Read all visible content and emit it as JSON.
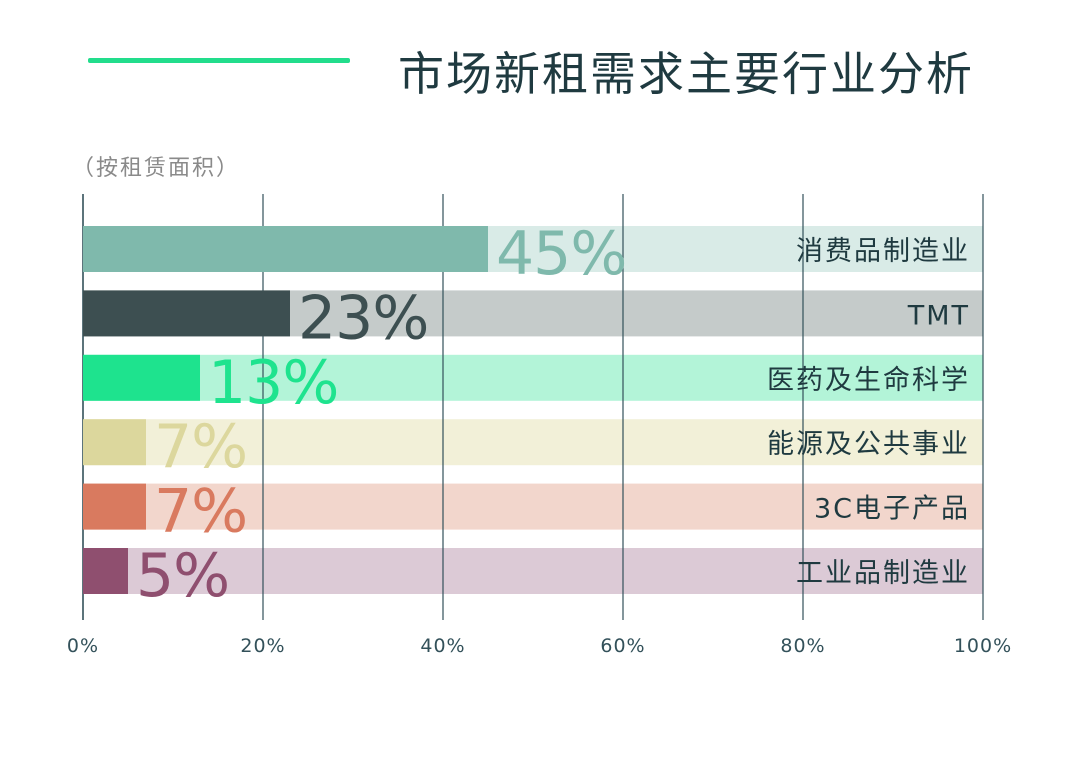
{
  "header": {
    "title": "市场新租需求主要行业分析",
    "subtitle": "（按租赁面积）",
    "accent_color": "#22dd8c"
  },
  "chart_data": {
    "type": "bar",
    "orientation": "horizontal",
    "title": "市场新租需求主要行业分析",
    "subtitle": "（按租赁面积）",
    "categories": [
      "消费品制造业",
      "TMT",
      "医药及生命科学",
      "能源及公共事业",
      "3C电子产品",
      "工业品制造业"
    ],
    "values": [
      45,
      23,
      13,
      7,
      7,
      5
    ],
    "value_labels": [
      "45%",
      "23%",
      "13%",
      "7%",
      "7%",
      "5%"
    ],
    "unit": "%",
    "xlim": [
      0,
      100
    ],
    "x_ticks": [
      "0%",
      "20%",
      "40%",
      "60%",
      "80%",
      "100%"
    ],
    "grid": true,
    "legend": "none",
    "colors": {
      "bars": [
        "#7fb9ac",
        "#3d4f51",
        "#1ee38e",
        "#dcd79d",
        "#d97a5f",
        "#8f4f6f"
      ],
      "tracks": [
        "#d9ebe7",
        "#c5cbca",
        "#b3f4d8",
        "#f2f0d8",
        "#f2d6cc",
        "#dccad6"
      ],
      "labels": [
        "#7fb9ac",
        "#3d4f51",
        "#1ee38e",
        "#dcd79d",
        "#d97a5f",
        "#8f4f6f"
      ],
      "category_text": "#1f3a40",
      "axis": "#33515a"
    }
  }
}
